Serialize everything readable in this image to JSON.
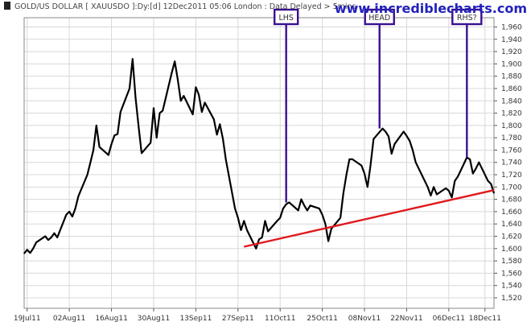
{
  "header": {
    "title": "GOLD/US DOLLAR [ XAUUSDO ]:Dy:[d]  12Dec2011 05:06 London : Data Delayed > 5mins",
    "brand": "www.incrediblecharts.com"
  },
  "colors": {
    "price_line": "#000000",
    "trendline": "#e0181c",
    "annotation": "#3a1090",
    "grid": "#d8d8d8",
    "brand": "#2222bb"
  },
  "chart_data": {
    "type": "line",
    "title": "GOLD/US DOLLAR [ XAUUSDO ]:Dy:[d]  12Dec2011 05:06 London : Data Delayed > 5mins",
    "xlabel": "",
    "ylabel": "",
    "x_tick_labels": [
      {
        "date": "2011-07-19",
        "label": "19Jul11"
      },
      {
        "date": "2011-08-02",
        "label": "02Aug11"
      },
      {
        "date": "2011-08-16",
        "label": "16Aug11"
      },
      {
        "date": "2011-08-30",
        "label": "30Aug11"
      },
      {
        "date": "2011-09-13",
        "label": "13Sep11"
      },
      {
        "date": "2011-09-27",
        "label": "27Sep11"
      },
      {
        "date": "2011-10-11",
        "label": "11Oct11"
      },
      {
        "date": "2011-10-25",
        "label": "25Oct11"
      },
      {
        "date": "2011-11-08",
        "label": "08Nov11"
      },
      {
        "date": "2011-11-22",
        "label": "22Nov11"
      },
      {
        "date": "2011-12-06",
        "label": "06Dec11"
      },
      {
        "date": "2011-12-18",
        "label": "18Dec11"
      }
    ],
    "y_ticks": [
      1520,
      1540,
      1560,
      1580,
      1600,
      1620,
      1640,
      1660,
      1680,
      1700,
      1720,
      1740,
      1760,
      1780,
      1800,
      1820,
      1840,
      1860,
      1880,
      1900,
      1920,
      1940,
      1960
    ],
    "y_tick_labels": [
      "1,520",
      "1,540",
      "1,560",
      "1,580",
      "1,600",
      "1,620",
      "1,640",
      "1,660",
      "1,680",
      "1,700",
      "1,720",
      "1,740",
      "1,760",
      "1,780",
      "1,800",
      "1,820",
      "1,840",
      "1,860",
      "1,880",
      "1,900",
      "1,920",
      "1,940",
      "1,960"
    ],
    "ylim": [
      1503,
      1975
    ],
    "xlim": [
      "2011-07-18",
      "2011-12-21"
    ],
    "grid": true,
    "y_axis_side": "right",
    "series": [
      {
        "points": [
          [
            "2011-07-18",
            1592
          ],
          [
            "2011-07-19",
            1598
          ],
          [
            "2011-07-20",
            1593
          ],
          [
            "2011-07-21",
            1600
          ],
          [
            "2011-07-22",
            1610
          ],
          [
            "2011-07-25",
            1620
          ],
          [
            "2011-07-26",
            1614
          ],
          [
            "2011-07-27",
            1618
          ],
          [
            "2011-07-28",
            1625
          ],
          [
            "2011-07-29",
            1618
          ],
          [
            "2011-08-01",
            1655
          ],
          [
            "2011-08-02",
            1660
          ],
          [
            "2011-08-03",
            1652
          ],
          [
            "2011-08-04",
            1665
          ],
          [
            "2011-08-05",
            1685
          ],
          [
            "2011-08-08",
            1720
          ],
          [
            "2011-08-09",
            1740
          ],
          [
            "2011-08-10",
            1760
          ],
          [
            "2011-08-11",
            1800
          ],
          [
            "2011-08-12",
            1765
          ],
          [
            "2011-08-15",
            1752
          ],
          [
            "2011-08-16",
            1770
          ],
          [
            "2011-08-17",
            1784
          ],
          [
            "2011-08-18",
            1786
          ],
          [
            "2011-08-19",
            1822
          ],
          [
            "2011-08-22",
            1860
          ],
          [
            "2011-08-23",
            1908
          ],
          [
            "2011-08-24",
            1845
          ],
          [
            "2011-08-25",
            1798
          ],
          [
            "2011-08-26",
            1755
          ],
          [
            "2011-08-29",
            1772
          ],
          [
            "2011-08-30",
            1828
          ],
          [
            "2011-08-31",
            1780
          ],
          [
            "2011-09-01",
            1820
          ],
          [
            "2011-09-02",
            1824
          ],
          [
            "2011-09-05",
            1885
          ],
          [
            "2011-09-06",
            1904
          ],
          [
            "2011-09-07",
            1875
          ],
          [
            "2011-09-08",
            1840
          ],
          [
            "2011-09-09",
            1848
          ],
          [
            "2011-09-12",
            1818
          ],
          [
            "2011-09-13",
            1862
          ],
          [
            "2011-09-14",
            1850
          ],
          [
            "2011-09-15",
            1822
          ],
          [
            "2011-09-16",
            1837
          ],
          [
            "2011-09-19",
            1810
          ],
          [
            "2011-09-20",
            1785
          ],
          [
            "2011-09-21",
            1802
          ],
          [
            "2011-09-22",
            1778
          ],
          [
            "2011-09-23",
            1744
          ],
          [
            "2011-09-26",
            1665
          ],
          [
            "2011-09-27",
            1650
          ],
          [
            "2011-09-28",
            1630
          ],
          [
            "2011-09-29",
            1645
          ],
          [
            "2011-09-30",
            1630
          ],
          [
            "2011-10-03",
            1600
          ],
          [
            "2011-10-04",
            1615
          ],
          [
            "2011-10-05",
            1618
          ],
          [
            "2011-10-06",
            1645
          ],
          [
            "2011-10-07",
            1628
          ],
          [
            "2011-10-10",
            1645
          ],
          [
            "2011-10-11",
            1650
          ],
          [
            "2011-10-12",
            1665
          ],
          [
            "2011-10-13",
            1672
          ],
          [
            "2011-10-14",
            1675
          ],
          [
            "2011-10-17",
            1662
          ],
          [
            "2011-10-18",
            1680
          ],
          [
            "2011-10-19",
            1670
          ],
          [
            "2011-10-20",
            1662
          ],
          [
            "2011-10-21",
            1670
          ],
          [
            "2011-10-24",
            1665
          ],
          [
            "2011-10-25",
            1655
          ],
          [
            "2011-10-26",
            1640
          ],
          [
            "2011-10-27",
            1612
          ],
          [
            "2011-10-28",
            1632
          ],
          [
            "2011-10-31",
            1650
          ],
          [
            "2011-11-01",
            1690
          ],
          [
            "2011-11-02",
            1720
          ],
          [
            "2011-11-03",
            1745
          ],
          [
            "2011-11-04",
            1745
          ],
          [
            "2011-11-07",
            1735
          ],
          [
            "2011-11-08",
            1722
          ],
          [
            "2011-11-09",
            1700
          ],
          [
            "2011-11-10",
            1735
          ],
          [
            "2011-11-11",
            1778
          ],
          [
            "2011-11-14",
            1795
          ],
          [
            "2011-11-15",
            1790
          ],
          [
            "2011-11-16",
            1782
          ],
          [
            "2011-11-17",
            1754
          ],
          [
            "2011-11-18",
            1770
          ],
          [
            "2011-11-21",
            1790
          ],
          [
            "2011-11-22",
            1783
          ],
          [
            "2011-11-23",
            1775
          ],
          [
            "2011-11-24",
            1760
          ],
          [
            "2011-11-25",
            1740
          ],
          [
            "2011-11-28",
            1710
          ],
          [
            "2011-11-29",
            1700
          ],
          [
            "2011-11-30",
            1686
          ],
          [
            "2011-12-01",
            1700
          ],
          [
            "2011-12-02",
            1688
          ],
          [
            "2011-12-05",
            1698
          ],
          [
            "2011-12-06",
            1694
          ],
          [
            "2011-12-07",
            1683
          ],
          [
            "2011-12-08",
            1710
          ],
          [
            "2011-12-09",
            1717
          ],
          [
            "2011-12-12",
            1748
          ],
          [
            "2011-12-13",
            1745
          ],
          [
            "2011-12-14",
            1722
          ],
          [
            "2011-12-15",
            1730
          ],
          [
            "2011-12-16",
            1740
          ],
          [
            "2011-12-19",
            1710
          ],
          [
            "2011-12-20",
            1705
          ],
          [
            "2011-12-21",
            1690
          ]
        ]
      }
    ],
    "trendline": {
      "from": [
        "2011-09-29",
        1603
      ],
      "to": [
        "2011-12-21",
        1695
      ]
    },
    "annotations": [
      {
        "label": "LHS",
        "date": "2011-10-13",
        "value": 1675
      },
      {
        "label": "HEAD",
        "date": "2011-11-13",
        "value": 1795
      },
      {
        "label": "RHS?",
        "date": "2011-12-12",
        "value": 1748
      }
    ]
  }
}
